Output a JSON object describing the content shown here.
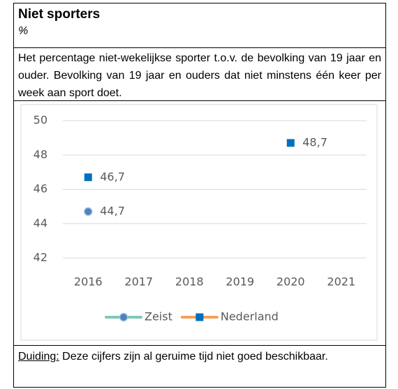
{
  "header": {
    "title": "Niet sporters",
    "unit": "%"
  },
  "description": "Het percentage niet-wekelijkse sporter t.o.v. de bevolking van 19 jaar en ouder. Bevolking van 19 jaar en ouders dat niet minstens één keer per week aan sport doet.",
  "chart_data": {
    "type": "line",
    "categories": [
      "2016",
      "2017",
      "2018",
      "2019",
      "2020",
      "2021"
    ],
    "series": [
      {
        "name": "Zeist",
        "color": "#7fc8b4",
        "marker": "circle",
        "marker_color": "#4f81bd",
        "values": [
          44.7,
          null,
          null,
          null,
          null,
          null
        ],
        "value_labels": [
          "44,7",
          null,
          null,
          null,
          null,
          null
        ]
      },
      {
        "name": "Nederland",
        "color": "#f5a05a",
        "marker": "square",
        "marker_color": "#0070c0",
        "values": [
          46.7,
          null,
          null,
          null,
          48.7,
          null
        ],
        "value_labels": [
          "46,7",
          null,
          null,
          null,
          "48,7",
          null
        ]
      }
    ],
    "ylim": [
      42,
      50
    ],
    "yticks": [
      42,
      44,
      46,
      48,
      50
    ],
    "grid": true,
    "legend": "bottom"
  },
  "footer": {
    "label": "Duiding:",
    "text": "Deze cijfers zijn al geruime tijd niet goed beschikbaar."
  }
}
